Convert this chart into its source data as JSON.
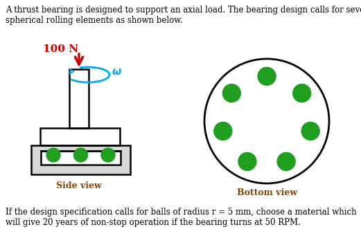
{
  "title_text": "A thrust bearing is designed to support an axial load. The bearing design calls for seven\nspherical rolling elements as shown below.",
  "bottom_text": "If the design specification calls for balls of radius r = 5 mm, choose a material which\nwill give 20 years of non-stop operation if the bearing turns at 50 RPM.",
  "side_view_label": "Side view",
  "bottom_view_label": "Bottom view",
  "load_label": "100 N",
  "omega_label": "ω",
  "ball_color": "#1f9e1f",
  "arrow_color": "#cc0000",
  "omega_color": "#00aaee",
  "background": "#ffffff",
  "text_color": "#000000",
  "shaft_color": "#000000",
  "label_color": "#8B4500",
  "num_balls": 7,
  "figw": 5.21,
  "figh": 3.54,
  "dpi": 100
}
